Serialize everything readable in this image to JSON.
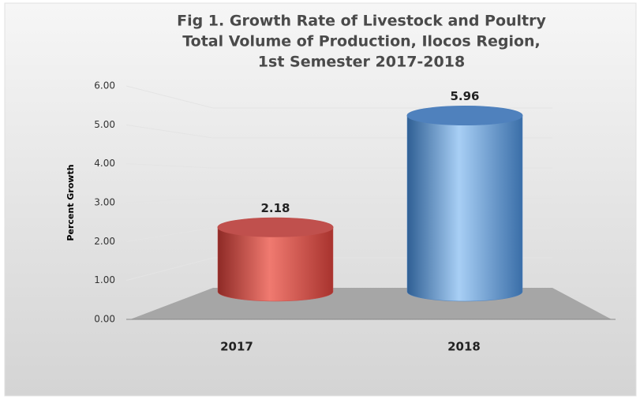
{
  "chart_data": {
    "type": "bar3d",
    "title": [
      "Fig 1. Growth Rate of Livestock  and Poultry",
      "Total Volume  of Production, Ilocos Region,",
      "1st Semester 2017-2018"
    ],
    "y_label": "Percent Growth",
    "categories": [
      "2017",
      "2018"
    ],
    "values": [
      2.18,
      5.96
    ],
    "colors": [
      "#c0504d",
      "#4f81bd"
    ],
    "ylim": [
      0,
      6
    ],
    "yticks": [
      {
        "value": 0,
        "label": "0.00"
      },
      {
        "value": 1,
        "label": "1.00"
      },
      {
        "value": 2,
        "label": "2.00"
      },
      {
        "value": 3,
        "label": "3.00"
      },
      {
        "value": 4,
        "label": "4.00"
      },
      {
        "value": 5,
        "label": "5.00"
      },
      {
        "value": 6,
        "label": "6.00"
      }
    ],
    "grid": true
  }
}
